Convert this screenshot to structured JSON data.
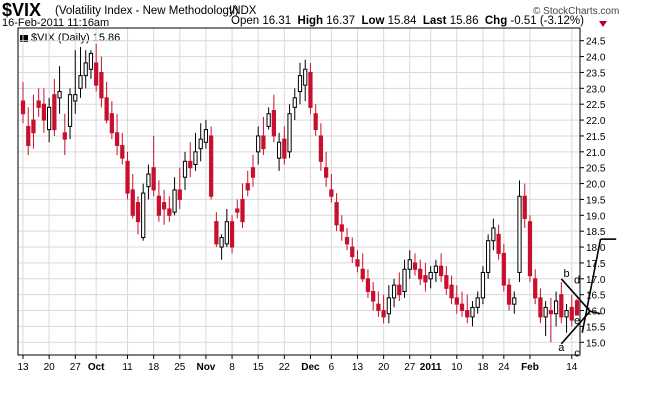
{
  "header": {
    "symbol": "$VIX",
    "name": "(Volatility Index - New Methodology)",
    "exchange": "INDX",
    "date": "16-Feb-2011 11:16am",
    "open_label": "Open",
    "open": "16.31",
    "high_label": "High",
    "high": "16.37",
    "low_label": "Low",
    "low": "15.84",
    "last_label": "Last",
    "last": "15.86",
    "chg_label": "Chg",
    "chg": "-0.51 (-3.12%)",
    "copyright": "© StockCharts.com",
    "legend": "$VIX (Daily) 15.86"
  },
  "colors": {
    "up": "#ffffff",
    "down": "#c8102e",
    "wick": "#000000",
    "grid": "#d9d9d9",
    "axis": "#000000",
    "accent": "#b2002a"
  },
  "chart_data": {
    "type": "candlestick",
    "title": "$VIX (Daily) 15.86",
    "ylim": [
      14.6,
      24.9
    ],
    "y_ticks": [
      15.0,
      15.5,
      16.0,
      16.5,
      17.0,
      17.5,
      18.0,
      18.5,
      19.0,
      19.5,
      20.0,
      20.5,
      21.0,
      21.5,
      22.0,
      22.5,
      23.0,
      23.5,
      24.0,
      24.5
    ],
    "x_tick_labels": [
      {
        "label": "13",
        "bar": 0
      },
      {
        "label": "20",
        "bar": 5
      },
      {
        "label": "27",
        "bar": 10
      },
      {
        "label": "Oct",
        "bar": 14
      },
      {
        "label": "11",
        "bar": 20
      },
      {
        "label": "18",
        "bar": 25
      },
      {
        "label": "25",
        "bar": 30
      },
      {
        "label": "Nov",
        "bar": 35
      },
      {
        "label": "8",
        "bar": 40
      },
      {
        "label": "15",
        "bar": 45
      },
      {
        "label": "22",
        "bar": 50
      },
      {
        "label": "Dec",
        "bar": 55
      },
      {
        "label": "6",
        "bar": 59
      },
      {
        "label": "13",
        "bar": 64
      },
      {
        "label": "20",
        "bar": 69
      },
      {
        "label": "27",
        "bar": 74
      },
      {
        "label": "2011",
        "bar": 78
      },
      {
        "label": "10",
        "bar": 83
      },
      {
        "label": "18",
        "bar": 88
      },
      {
        "label": "24",
        "bar": 92
      },
      {
        "label": "Feb",
        "bar": 97
      },
      {
        "label": "14",
        "bar": 105
      }
    ],
    "candles": [
      [
        22.6,
        23.2,
        21.9,
        22.2
      ],
      [
        21.8,
        22.4,
        20.9,
        21.2
      ],
      [
        22.0,
        22.8,
        21.1,
        21.6
      ],
      [
        22.6,
        23.0,
        22.1,
        22.4
      ],
      [
        22.5,
        23.0,
        21.6,
        22.0
      ],
      [
        21.7,
        22.7,
        21.3,
        22.4
      ],
      [
        22.8,
        23.3,
        21.5,
        21.7
      ],
      [
        22.7,
        23.7,
        22.2,
        22.9
      ],
      [
        21.6,
        22.2,
        20.9,
        21.4
      ],
      [
        21.8,
        23.0,
        21.4,
        22.8
      ],
      [
        22.6,
        24.2,
        22.2,
        22.8
      ],
      [
        23.0,
        24.3,
        22.7,
        23.4
      ],
      [
        23.4,
        24.2,
        23.0,
        23.8
      ],
      [
        23.6,
        24.2,
        23.3,
        24.1
      ],
      [
        23.8,
        24.4,
        22.9,
        23.1
      ],
      [
        23.5,
        24.0,
        22.4,
        22.7
      ],
      [
        22.7,
        23.2,
        21.9,
        22.0
      ],
      [
        22.2,
        22.6,
        21.4,
        21.6
      ],
      [
        21.6,
        22.2,
        20.9,
        21.2
      ],
      [
        21.2,
        21.6,
        20.6,
        20.8
      ],
      [
        20.7,
        21.0,
        19.5,
        19.7
      ],
      [
        19.8,
        20.3,
        18.9,
        19.0
      ],
      [
        19.4,
        19.6,
        18.4,
        18.8
      ],
      [
        18.3,
        20.0,
        18.2,
        19.7
      ],
      [
        19.9,
        20.6,
        19.5,
        20.3
      ],
      [
        20.5,
        21.5,
        19.6,
        19.8
      ],
      [
        19.6,
        20.1,
        18.8,
        19.0
      ],
      [
        19.4,
        19.8,
        18.7,
        19.2
      ],
      [
        19.2,
        19.6,
        18.8,
        19.0
      ],
      [
        19.1,
        20.2,
        19.0,
        19.8
      ],
      [
        19.8,
        20.5,
        19.2,
        19.5
      ],
      [
        20.2,
        21.0,
        19.8,
        20.7
      ],
      [
        20.7,
        21.3,
        20.2,
        20.5
      ],
      [
        20.6,
        21.6,
        20.4,
        21.0
      ],
      [
        21.1,
        21.9,
        20.7,
        21.4
      ],
      [
        21.3,
        22.0,
        21.1,
        21.7
      ],
      [
        21.5,
        21.8,
        19.5,
        19.6
      ],
      [
        18.8,
        19.1,
        18.0,
        18.1
      ],
      [
        18.0,
        18.4,
        17.6,
        18.3
      ],
      [
        18.1,
        19.2,
        18.0,
        18.8
      ],
      [
        18.8,
        19.0,
        17.8,
        18.0
      ],
      [
        19.2,
        19.5,
        18.9,
        19.1
      ],
      [
        19.5,
        20.0,
        18.6,
        18.8
      ],
      [
        20.0,
        20.4,
        19.6,
        19.8
      ],
      [
        20.5,
        20.9,
        19.9,
        20.2
      ],
      [
        21.0,
        21.8,
        20.6,
        21.5
      ],
      [
        21.5,
        22.1,
        20.9,
        21.1
      ],
      [
        21.8,
        22.4,
        21.7,
        22.2
      ],
      [
        22.3,
        22.8,
        21.3,
        21.5
      ],
      [
        20.8,
        21.6,
        20.4,
        21.3
      ],
      [
        21.4,
        21.8,
        20.6,
        20.8
      ],
      [
        21.0,
        22.5,
        20.8,
        22.2
      ],
      [
        22.4,
        23.0,
        22.0,
        22.7
      ],
      [
        22.9,
        23.8,
        22.5,
        23.4
      ],
      [
        23.1,
        23.9,
        22.6,
        23.6
      ],
      [
        23.5,
        23.8,
        22.2,
        22.4
      ],
      [
        22.2,
        22.5,
        21.5,
        21.7
      ],
      [
        21.5,
        21.9,
        20.4,
        20.7
      ],
      [
        20.5,
        21.0,
        19.9,
        20.2
      ],
      [
        19.8,
        20.3,
        19.4,
        19.6
      ],
      [
        19.4,
        19.7,
        18.5,
        18.7
      ],
      [
        18.7,
        19.0,
        18.2,
        18.5
      ],
      [
        18.3,
        18.6,
        17.9,
        18.1
      ],
      [
        18.0,
        18.3,
        17.5,
        17.7
      ],
      [
        17.6,
        17.9,
        17.2,
        17.4
      ],
      [
        17.3,
        17.8,
        16.9,
        17.0
      ],
      [
        17.0,
        17.3,
        16.4,
        16.6
      ],
      [
        16.6,
        16.9,
        16.0,
        16.3
      ],
      [
        16.2,
        16.6,
        15.8,
        16.0
      ],
      [
        16.0,
        16.5,
        15.6,
        15.8
      ],
      [
        15.9,
        16.8,
        15.6,
        16.4
      ],
      [
        16.4,
        17.0,
        16.1,
        16.8
      ],
      [
        16.8,
        17.2,
        16.3,
        16.5
      ],
      [
        16.6,
        17.6,
        16.4,
        17.3
      ],
      [
        17.3,
        17.9,
        17.0,
        17.6
      ],
      [
        17.5,
        17.8,
        17.1,
        17.3
      ],
      [
        17.3,
        17.6,
        16.8,
        17.0
      ],
      [
        17.1,
        17.5,
        16.6,
        16.9
      ],
      [
        17.0,
        17.4,
        16.7,
        17.2
      ],
      [
        17.2,
        17.6,
        16.9,
        17.4
      ],
      [
        17.4,
        17.8,
        16.9,
        17.1
      ],
      [
        17.1,
        17.4,
        16.5,
        16.7
      ],
      [
        16.8,
        17.1,
        16.2,
        16.4
      ],
      [
        16.4,
        16.8,
        15.9,
        16.2
      ],
      [
        16.2,
        16.6,
        15.8,
        16.0
      ],
      [
        16.0,
        16.5,
        15.6,
        15.8
      ],
      [
        15.8,
        16.3,
        15.5,
        16.1
      ],
      [
        16.1,
        16.6,
        15.9,
        16.4
      ],
      [
        16.4,
        17.4,
        16.2,
        17.2
      ],
      [
        17.2,
        18.4,
        17.0,
        18.2
      ],
      [
        18.2,
        18.9,
        17.9,
        18.6
      ],
      [
        18.4,
        18.7,
        17.6,
        17.8
      ],
      [
        17.8,
        18.1,
        16.6,
        16.8
      ],
      [
        16.8,
        17.0,
        16.0,
        16.2
      ],
      [
        16.2,
        16.6,
        15.9,
        16.4
      ],
      [
        17.2,
        20.1,
        16.9,
        19.6
      ],
      [
        19.6,
        20.0,
        18.6,
        18.9
      ],
      [
        18.8,
        19.0,
        16.9,
        17.1
      ],
      [
        17.0,
        17.3,
        16.2,
        16.4
      ],
      [
        16.4,
        16.7,
        15.6,
        15.8
      ],
      [
        15.8,
        16.3,
        15.2,
        16.1
      ],
      [
        16.0,
        16.4,
        15.0,
        15.9
      ],
      [
        15.9,
        16.6,
        15.5,
        16.3
      ],
      [
        16.5,
        16.9,
        15.6,
        15.8
      ],
      [
        15.8,
        16.2,
        15.3,
        16.0
      ],
      [
        16.1,
        16.5,
        15.5,
        15.7
      ],
      [
        16.31,
        16.37,
        15.84,
        15.86
      ]
    ],
    "annotations": [
      {
        "label": "a",
        "bar": 103,
        "price": 14.72
      },
      {
        "label": "b",
        "bar": 104,
        "price": 17.06
      },
      {
        "label": "c",
        "bar": 106,
        "price": 14.55
      },
      {
        "label": "d",
        "bar": 106,
        "price": 16.86
      },
      {
        "label": "e",
        "bar": 106,
        "price": 15.57
      }
    ],
    "trendlines": [
      {
        "from": [
          103,
          17.0
        ],
        "to": [
          108.5,
          15.98
        ]
      },
      {
        "from": [
          103,
          14.95
        ],
        "to": [
          108.5,
          15.98
        ]
      },
      {
        "from": [
          107,
          15.3
        ],
        "to": [
          110.5,
          18.25
        ]
      },
      {
        "from": [
          110.5,
          18.25
        ],
        "to": [
          113.5,
          18.25
        ]
      },
      {
        "from": [
          108.5,
          15.98
        ],
        "to": [
          110.5,
          15.9
        ]
      }
    ]
  }
}
